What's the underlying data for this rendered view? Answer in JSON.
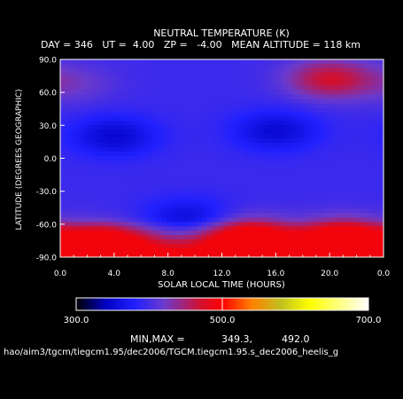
{
  "chart_data": {
    "type": "heatmap",
    "title": "NEUTRAL TEMPERATURE (K)",
    "subtitle": "DAY = 346   UT =  4.00   ZP =   -4.00   MEAN ALTITUDE = 118 km",
    "xlabel": "SOLAR LOCAL TIME (HOURS)",
    "ylabel": "LATITUDE (DEGREES GEOGRAPHIC)",
    "xlim": [
      0,
      24
    ],
    "ylim": [
      -90,
      90
    ],
    "x_ticks": [
      "0.0",
      "4.0",
      "8.0",
      "12.0",
      "16.0",
      "20.0",
      "0.0"
    ],
    "y_ticks": [
      "90.0",
      "60.0",
      "30.0",
      "0.0",
      "-30.0",
      "-60.0",
      "-90.0"
    ],
    "colorbar": {
      "min": 300.0,
      "max": 700.0,
      "tick_labels": [
        "300.0",
        "500.0",
        "700.0"
      ],
      "stops": [
        [
          300,
          "#000000"
        ],
        [
          340,
          "#0000c0"
        ],
        [
          380,
          "#2020ff"
        ],
        [
          420,
          "#6a3acc"
        ],
        [
          470,
          "#d01030"
        ],
        [
          500,
          "#ff0000"
        ],
        [
          540,
          "#ff8000"
        ],
        [
          580,
          "#c0c020"
        ],
        [
          620,
          "#ffff00"
        ],
        [
          660,
          "#ffff80"
        ],
        [
          700,
          "#ffffff"
        ]
      ]
    },
    "minmax_label": "MIN,MAX =",
    "min_value": "349.3,",
    "max_value": "492.0",
    "features": [
      {
        "kind": "cold",
        "lt": 4.0,
        "lat": 20,
        "value": 350
      },
      {
        "kind": "cold",
        "lt": 16.0,
        "lat": 25,
        "value": 352
      },
      {
        "kind": "cold",
        "lt": 9.5,
        "lat": -55,
        "value": 355
      },
      {
        "kind": "warm",
        "lt": 14.0,
        "lat": -72,
        "value": 490
      },
      {
        "kind": "warm",
        "lt": 3.0,
        "lat": -78,
        "value": 485
      },
      {
        "kind": "warm",
        "lt": 21.0,
        "lat": -72,
        "value": 488
      },
      {
        "kind": "warm",
        "lt": 20.0,
        "lat": 72,
        "value": 470
      },
      {
        "kind": "warm",
        "lt": 1.0,
        "lat": 68,
        "value": 420
      }
    ]
  },
  "file_path": "hao/aim3/tgcm/tiegcm1.95/dec2006/TGCM.tiegcm1.95.s_dec2006_heelis_g"
}
